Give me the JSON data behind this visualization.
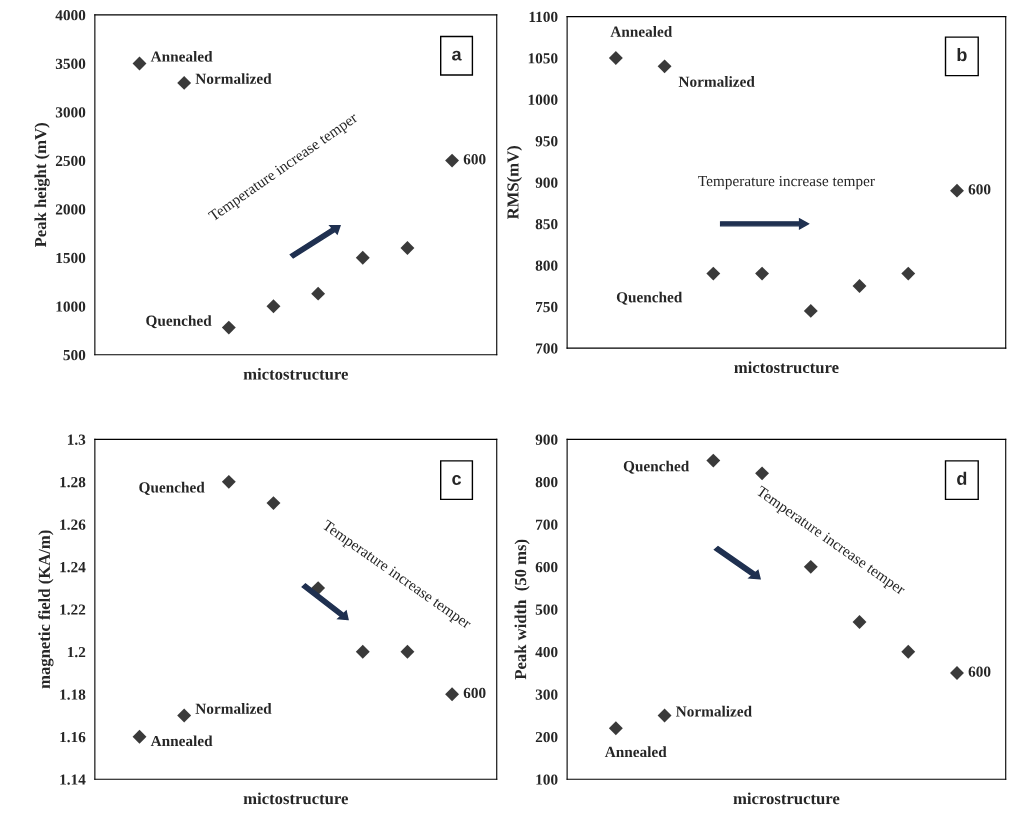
{
  "chart_data": [
    {
      "type": "scatter",
      "categories": [
        null,
        null,
        null,
        null,
        null,
        null,
        null,
        null
      ],
      "values": [
        3500,
        3300,
        780,
        1000,
        1130,
        1500,
        1600,
        2500
      ],
      "color": "#3a3a3a",
      "marker": "diamond",
      "xlabel": "mictostructure",
      "ylabel": "Peak height (mV)",
      "ylim": [
        500,
        4000
      ],
      "yticks": [
        500,
        1000,
        1500,
        2000,
        2500,
        3000,
        3500,
        4000
      ],
      "annotations": [
        "a",
        "Temperature increase temper",
        "Annealed",
        "Normalized",
        "Quenched",
        "600"
      ]
    },
    {
      "type": "scatter",
      "categories": [
        null,
        null,
        null,
        null,
        null,
        null,
        null,
        null
      ],
      "values": [
        1050,
        1040,
        790,
        790,
        745,
        775,
        790,
        890
      ],
      "color": "#3a3a3a",
      "marker": "diamond",
      "xlabel": "mictostructure",
      "ylabel": "RMS(mV)",
      "ylim": [
        700,
        1100
      ],
      "yticks": [
        700,
        750,
        800,
        850,
        900,
        950,
        1000,
        1050,
        1100
      ],
      "annotations": [
        "b",
        "Temperature increase temper",
        "Annealed",
        "Normalized",
        "Quenched",
        "600"
      ]
    },
    {
      "type": "scatter",
      "categories": [
        null,
        null,
        null,
        null,
        null,
        null,
        null,
        null
      ],
      "values": [
        1.16,
        1.17,
        1.28,
        1.27,
        1.23,
        1.2,
        1.2,
        1.18
      ],
      "color": "#3a3a3a",
      "marker": "diamond",
      "xlabel": "mictostructure",
      "ylabel": "magnetic field (KA/m)",
      "ylim": [
        1.14,
        1.3
      ],
      "yticks": [
        1.14,
        1.16,
        1.18,
        1.2,
        1.22,
        1.24,
        1.26,
        1.28,
        1.3
      ],
      "annotations": [
        "c",
        "Temperature increase temper",
        "Quenched",
        "Normalized",
        "Annealed",
        "600"
      ]
    },
    {
      "type": "scatter",
      "categories": [
        null,
        null,
        null,
        null,
        null,
        null,
        null,
        null
      ],
      "values": [
        220,
        250,
        850,
        820,
        600,
        470,
        400,
        350
      ],
      "color": "#3a3a3a",
      "marker": "diamond",
      "xlabel": "microstructure",
      "ylabel": "Peak width  (50 ms)",
      "ylim": [
        100,
        900
      ],
      "yticks": [
        100,
        200,
        300,
        400,
        500,
        600,
        700,
        800,
        900
      ],
      "annotations": [
        "d",
        "Temperature increase temper",
        "Quenched",
        "Normalized",
        "Annealed",
        "600"
      ]
    }
  ]
}
